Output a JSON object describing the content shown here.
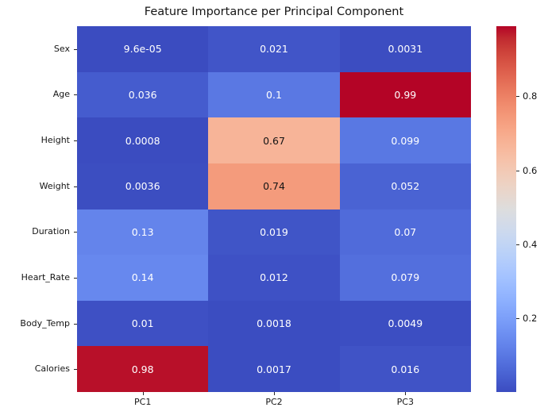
{
  "title": "Feature Importance per Principal Component",
  "chart_data": {
    "type": "heatmap",
    "title": "Feature Importance per Principal Component",
    "xlabel": "",
    "ylabel": "",
    "rows": [
      "Sex",
      "Age",
      "Height",
      "Weight",
      "Duration",
      "Heart_Rate",
      "Body_Temp",
      "Calories"
    ],
    "columns": [
      "PC1",
      "PC2",
      "PC3"
    ],
    "values": [
      [
        9.6e-05,
        0.021,
        0.0031
      ],
      [
        0.036,
        0.1,
        0.99
      ],
      [
        0.0008,
        0.67,
        0.099
      ],
      [
        0.0036,
        0.74,
        0.052
      ],
      [
        0.13,
        0.019,
        0.07
      ],
      [
        0.14,
        0.012,
        0.079
      ],
      [
        0.01,
        0.0018,
        0.0049
      ],
      [
        0.98,
        0.0017,
        0.016
      ]
    ],
    "annotations": [
      [
        "9.6e-05",
        "0.021",
        "0.0031"
      ],
      [
        "0.036",
        "0.1",
        "0.99"
      ],
      [
        "0.0008",
        "0.67",
        "0.099"
      ],
      [
        "0.0036",
        "0.74",
        "0.052"
      ],
      [
        "0.13",
        "0.019",
        "0.07"
      ],
      [
        "0.14",
        "0.012",
        "0.079"
      ],
      [
        "0.01",
        "0.0018",
        "0.0049"
      ],
      [
        "0.98",
        "0.0017",
        "0.016"
      ]
    ],
    "colormap": "coolwarm",
    "vmin": 9.6e-05,
    "vmax": 0.99,
    "colorbar": {
      "position": "right",
      "ticks": [
        0.2,
        0.4,
        0.6,
        0.8
      ],
      "tick_labels": [
        "0.2",
        "0.4",
        "0.6",
        "0.8"
      ]
    },
    "colors": {
      "min_color": "#3b4cc0",
      "mid_color": "#dddddd",
      "max_color": "#b40426",
      "background": "#ffffff",
      "text_dark": "#151515",
      "annot_light": "#ffffff"
    },
    "grid": false,
    "legend": false
  }
}
